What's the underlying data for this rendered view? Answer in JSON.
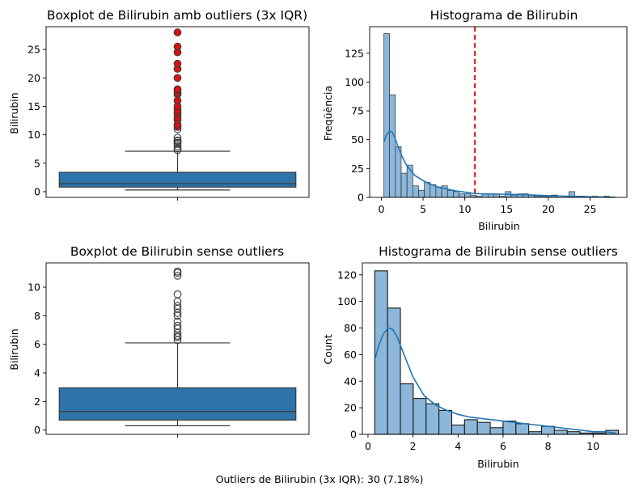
{
  "footnote": "Outliers de Bilirubin (3x IQR): 30 (7.18%)",
  "colors": {
    "box": "#2e74aa",
    "hist": "#8cb7da",
    "kde": "#1f77b4",
    "threshold": "#e00000",
    "outlier_red": "#dd1111"
  },
  "chart_data": [
    {
      "type": "box",
      "title": "Boxplot de Bilirubin amb outliers (3x IQR)",
      "xlabel": "",
      "ylabel": "Bilirubin",
      "ylim": [
        -1,
        29
      ],
      "yticks": [
        0,
        5,
        10,
        15,
        20,
        25
      ],
      "box": {
        "q1": 0.8,
        "median": 1.4,
        "q3": 3.4,
        "whisker_low": 0.3,
        "whisker_high": 7.1
      },
      "outliers": [
        7.3,
        7.6,
        8.0,
        8.4,
        8.6,
        8.9,
        9.0,
        9.5,
        11.0,
        11.4,
        11.8,
        12.6,
        13.0,
        13.6,
        14.0,
        14.4,
        15.0,
        16.0,
        17.1,
        17.4,
        17.9,
        18.0,
        20.0,
        21.6,
        22.5,
        24.5,
        25.5,
        28.0
      ],
      "outliers_highlight_above": 11.2,
      "grid": false
    },
    {
      "type": "histogram",
      "title": "Histograma de Bilirubin",
      "xlabel": "Bilirubin",
      "ylabel": "Freqüència",
      "xlim": [
        -1.4,
        29.4
      ],
      "ylim": [
        0,
        148
      ],
      "xticks": [
        0,
        5,
        10,
        15,
        20,
        25
      ],
      "yticks": [
        0,
        25,
        50,
        75,
        100,
        125
      ],
      "bin_start": 0.3,
      "bin_width": 0.6926,
      "counts": [
        142,
        89,
        44,
        21,
        28,
        10,
        6,
        13,
        11,
        9,
        10,
        6,
        5,
        3,
        3,
        2,
        1,
        3,
        3,
        3,
        1,
        5,
        2,
        3,
        3,
        2,
        1,
        1,
        1,
        2,
        0,
        0,
        5,
        1,
        1,
        0,
        1,
        0,
        1,
        0
      ],
      "kde": {
        "x": [
          0.3,
          0.6,
          1.0,
          1.3,
          1.6,
          2.0,
          2.5,
          3.0,
          4.0,
          5.0,
          6.0,
          7.0,
          8.0,
          9.0,
          10.0,
          11.0,
          12.0,
          14.0,
          16.0,
          18.0,
          20.0,
          22.0,
          24.0,
          26.0,
          28.0
        ],
        "y": [
          48,
          54,
          57.5,
          56.5,
          52,
          44,
          35,
          28,
          19,
          14.5,
          11,
          8.5,
          7,
          5.5,
          4.5,
          3.5,
          3,
          2.8,
          2.5,
          2,
          1.5,
          1,
          0.6,
          0.3,
          0.1
        ]
      },
      "threshold_line": 11.2,
      "grid": false
    },
    {
      "type": "box",
      "title": "Boxplot de Bilirubin sense outliers",
      "xlabel": "",
      "ylabel": "Bilirubin",
      "ylim": [
        -0.3,
        11.7
      ],
      "yticks": [
        0,
        2,
        4,
        6,
        8,
        10
      ],
      "box": {
        "q1": 0.7,
        "median": 1.3,
        "q3": 2.95,
        "whisker_low": 0.3,
        "whisker_high": 6.1
      },
      "outliers": [
        6.3,
        6.5,
        6.6,
        6.8,
        7.1,
        7.3,
        7.6,
        8.0,
        8.2,
        8.5,
        8.7,
        9.0,
        9.5,
        10.8,
        11.0,
        11.1
      ],
      "grid": false
    },
    {
      "type": "histogram",
      "title": "Histograma de Bilirubin sense outliers",
      "xlabel": "Bilirubin",
      "ylabel": "Count",
      "xlim": [
        -0.25,
        11.5
      ],
      "ylim": [
        0,
        129
      ],
      "xticks": [
        0,
        2,
        4,
        6,
        8,
        10
      ],
      "yticks": [
        0,
        20,
        40,
        60,
        80,
        100,
        120
      ],
      "bin_start": 0.3,
      "bin_width": 0.57,
      "counts": [
        123,
        95,
        38,
        27,
        23,
        18,
        7,
        11,
        9,
        5,
        10,
        8,
        2,
        6,
        3,
        2,
        1,
        1,
        3
      ],
      "kde": {
        "x": [
          0.3,
          0.5,
          0.7,
          0.9,
          1.1,
          1.3,
          1.6,
          2.0,
          2.5,
          3.0,
          3.5,
          4.0,
          4.5,
          5.0,
          5.5,
          6.0,
          6.5,
          7.0,
          7.5,
          8.0,
          8.5,
          9.0,
          9.5,
          10.0,
          10.5,
          11.0
        ],
        "y": [
          56,
          68,
          76,
          80,
          79,
          73,
          60,
          43,
          29,
          22,
          18,
          15,
          13,
          12,
          11,
          10,
          9,
          8,
          7,
          6,
          5,
          4,
          3,
          2,
          2,
          1
        ]
      },
      "grid": false
    }
  ]
}
